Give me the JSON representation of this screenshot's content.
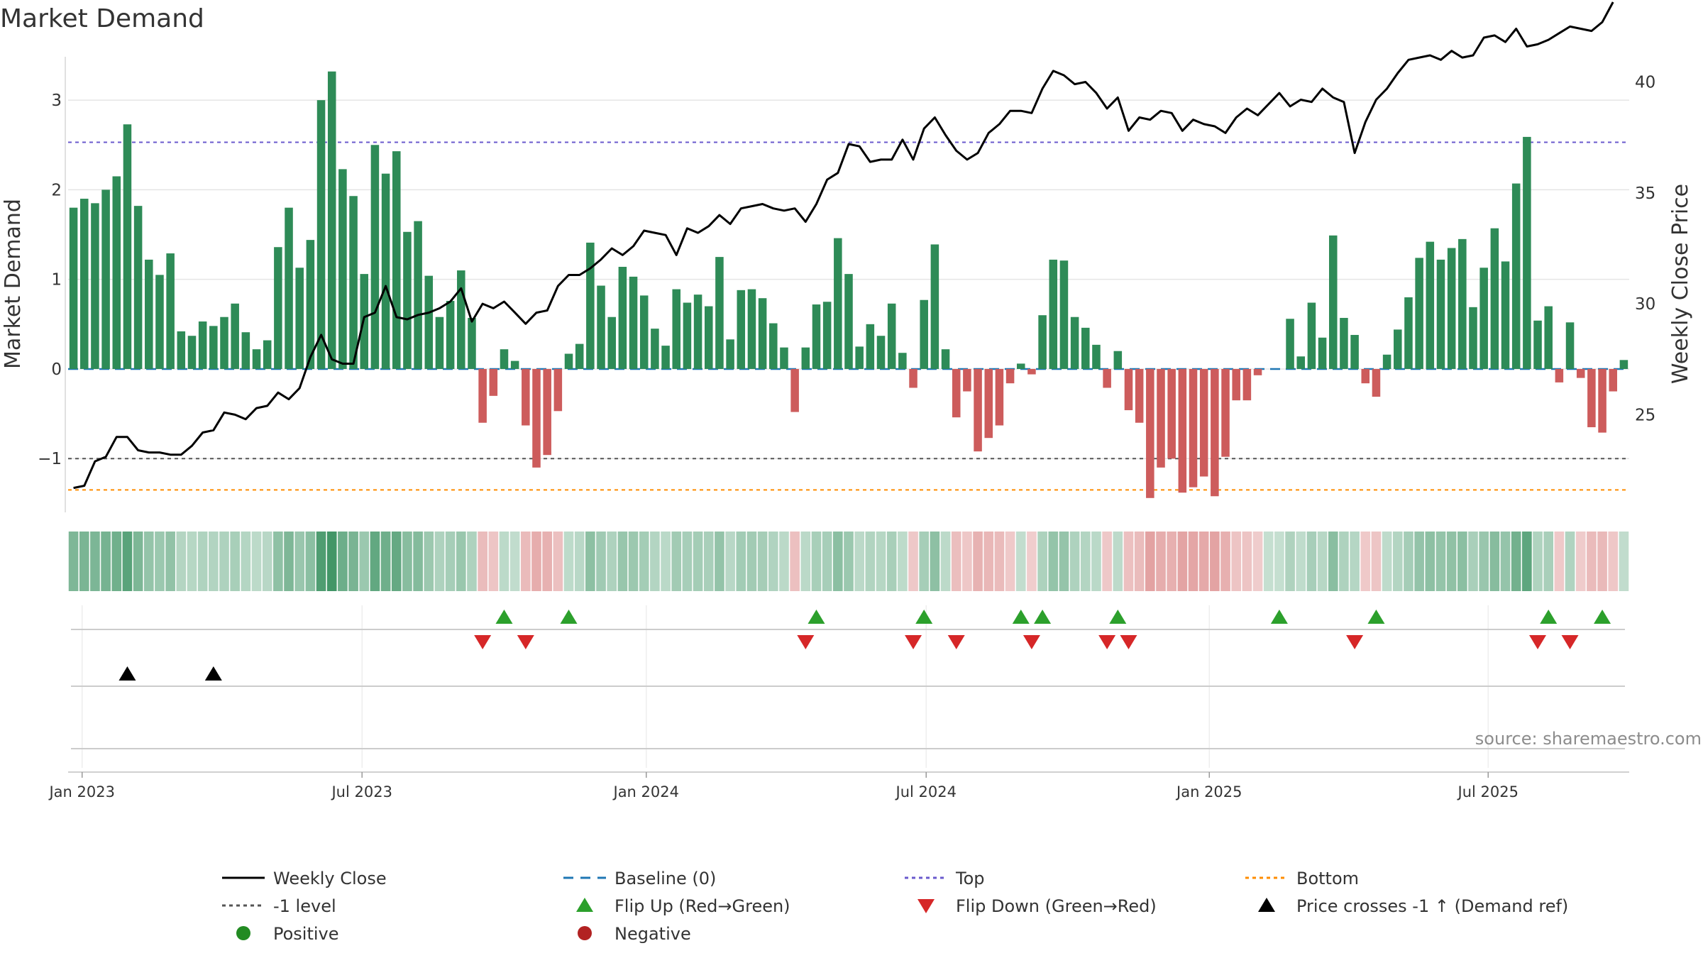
{
  "chart_data": {
    "type": "bar",
    "title": "Market Demand",
    "ylabel": "Market Demand",
    "y2label": "Weekly Close Price",
    "ylim": [
      -1.6,
      3.5
    ],
    "y2lim": [
      20.6,
      41.2
    ],
    "yticks": [
      3,
      2,
      1,
      0,
      -1
    ],
    "ytick_labels": [
      "3",
      "2",
      "1",
      "0",
      "−1"
    ],
    "y2ticks": [
      40,
      35,
      30,
      25
    ],
    "ytick2_labels": [
      "40",
      "35",
      "30",
      "25"
    ],
    "start_date": "2022-12-23",
    "x_ticks": [
      {
        "label": "Jan 2023",
        "week": 1.3
      },
      {
        "label": "Jul 2023",
        "week": 27.3
      },
      {
        "label": "Jan 2024",
        "week": 53.7
      },
      {
        "label": "Jul 2024",
        "week": 79.7
      },
      {
        "label": "Jan 2025",
        "week": 106.0
      },
      {
        "label": "Jul 2025",
        "week": 131.9
      }
    ],
    "reference_lines": {
      "baseline": 0,
      "top": 2.53,
      "minus1": -1,
      "bottom": -1.35
    },
    "series": [
      {
        "name": "Market Demand",
        "values": [
          1.8,
          1.9,
          1.85,
          2.0,
          2.15,
          2.73,
          1.82,
          1.22,
          1.05,
          1.29,
          0.42,
          0.37,
          0.53,
          0.48,
          0.58,
          0.73,
          0.41,
          0.22,
          0.32,
          1.36,
          1.8,
          1.13,
          1.44,
          3.0,
          3.32,
          2.23,
          1.93,
          1.06,
          2.5,
          2.18,
          2.43,
          1.53,
          1.65,
          1.04,
          0.58,
          0.76,
          1.1,
          0.57,
          -0.6,
          -0.3,
          0.22,
          0.09,
          -0.63,
          -1.1,
          -0.96,
          -0.47,
          0.17,
          0.28,
          1.41,
          0.93,
          0.58,
          1.14,
          1.03,
          0.82,
          0.45,
          0.26,
          0.89,
          0.74,
          0.83,
          0.7,
          1.25,
          0.33,
          0.88,
          0.89,
          0.79,
          0.51,
          0.24,
          -0.48,
          0.24,
          0.72,
          0.75,
          1.46,
          1.06,
          0.25,
          0.5,
          0.37,
          0.73,
          0.18,
          -0.21,
          0.77,
          1.39,
          0.22,
          -0.54,
          -0.25,
          -0.92,
          -0.77,
          -0.63,
          -0.16,
          0.06,
          -0.06,
          0.6,
          1.22,
          1.21,
          0.58,
          0.46,
          0.27,
          -0.21,
          0.2,
          -0.46,
          -0.6,
          -1.44,
          -1.1,
          -1.0,
          -1.38,
          -1.32,
          -1.2,
          -1.42,
          -0.98,
          -0.35,
          -0.35,
          -0.07,
          0.0,
          0.0,
          0.56,
          0.14,
          0.74,
          0.35,
          1.49,
          0.57,
          0.38,
          -0.16,
          -0.31,
          0.16,
          0.44,
          0.8,
          1.24,
          1.42,
          1.22,
          1.35,
          1.45,
          0.69,
          1.13,
          1.57,
          1.2,
          2.07,
          2.59,
          0.54,
          0.7,
          -0.15,
          0.52,
          -0.1,
          -0.65,
          -0.71,
          -0.25,
          0.1
        ]
      },
      {
        "name": "Weekly Close",
        "values": [
          21.7,
          21.8,
          22.9,
          23.1,
          24.0,
          24.0,
          23.4,
          23.3,
          23.3,
          23.2,
          23.2,
          23.6,
          24.2,
          24.3,
          25.1,
          25.0,
          24.8,
          25.3,
          25.4,
          26.0,
          25.7,
          26.2,
          27.6,
          28.6,
          27.5,
          27.3,
          27.3,
          29.4,
          29.6,
          30.8,
          29.4,
          29.3,
          29.5,
          29.6,
          29.8,
          30.1,
          30.7,
          29.2,
          30.0,
          29.8,
          30.1,
          29.6,
          29.1,
          29.6,
          29.7,
          30.8,
          31.3,
          31.3,
          31.6,
          32.0,
          32.5,
          32.2,
          32.6,
          33.3,
          33.2,
          33.1,
          32.2,
          33.4,
          33.2,
          33.5,
          34.0,
          33.6,
          34.3,
          34.4,
          34.5,
          34.3,
          34.2,
          34.3,
          33.7,
          34.5,
          35.6,
          35.9,
          37.2,
          37.1,
          36.4,
          36.5,
          36.5,
          37.4,
          36.5,
          37.9,
          38.4,
          37.6,
          36.9,
          36.5,
          36.8,
          37.7,
          38.1,
          38.7,
          38.7,
          38.6,
          39.7,
          40.5,
          40.3,
          39.9,
          40.0,
          39.5,
          38.8,
          39.3,
          37.8,
          38.4,
          38.3,
          38.7,
          38.6,
          37.8,
          38.3,
          38.1,
          38.0,
          37.7,
          38.4,
          38.8,
          38.5,
          39.0,
          39.5,
          38.9,
          39.2,
          39.1,
          39.7,
          39.3,
          39.1,
          36.8,
          38.2,
          39.2,
          39.7,
          40.4,
          41.0,
          41.1,
          41.2,
          41.0,
          41.4,
          41.1,
          41.2,
          42.0,
          42.1,
          41.8,
          42.4,
          41.6,
          41.7,
          41.9,
          42.2,
          42.5,
          42.4,
          42.3,
          42.7,
          43.6
        ]
      }
    ],
    "flip_up_weeks": [
      40,
      46,
      69,
      79,
      88,
      90,
      97,
      112,
      121,
      137,
      142
    ],
    "flip_down_weeks": [
      38,
      42,
      68,
      78,
      82,
      89,
      96,
      98,
      119,
      136,
      139
    ],
    "price_cross_weeks": [
      5,
      13
    ],
    "legend": [
      {
        "label": "Weekly Close",
        "kind": "line",
        "color": "#000000",
        "dash": "solid"
      },
      {
        "label": "Baseline (0)",
        "kind": "line",
        "color": "#1f77b4",
        "dash": "dashed"
      },
      {
        "label": "Top",
        "kind": "line",
        "color": "#6a5acd",
        "dash": "dotted"
      },
      {
        "label": "Bottom",
        "kind": "line",
        "color": "#ff8c00",
        "dash": "dotted"
      },
      {
        "label": "-1 level",
        "kind": "line",
        "color": "#555555",
        "dash": "dotted"
      },
      {
        "label": "Flip Up (Red→Green)",
        "kind": "triangle-up",
        "color": "#2ca02c"
      },
      {
        "label": "Flip Down (Green→Red)",
        "kind": "triangle-down",
        "color": "#d62728"
      },
      {
        "label": "Price crosses -1 ↑ (Demand ref)",
        "kind": "triangle-up",
        "color": "#000000"
      },
      {
        "label": "Positive",
        "kind": "dot",
        "color": "#228b22"
      },
      {
        "label": "Negative",
        "kind": "dot",
        "color": "#b22222"
      }
    ],
    "source": "source: sharemaestro.com"
  },
  "colors": {
    "bar_positive": "#2e8b57",
    "bar_negative": "#cd5c5c",
    "strip_positive": "#2e8b57",
    "strip_negative": "#cd5c5c",
    "price_line": "#000000",
    "baseline": "#1f77b4",
    "top_line": "#6a5acd",
    "minus1_line": "#555555",
    "bottom_line": "#ff8c00",
    "flip_up": "#2ca02c",
    "flip_down": "#d62728",
    "price_cross": "#000000",
    "grid": "#e5e5e5"
  }
}
